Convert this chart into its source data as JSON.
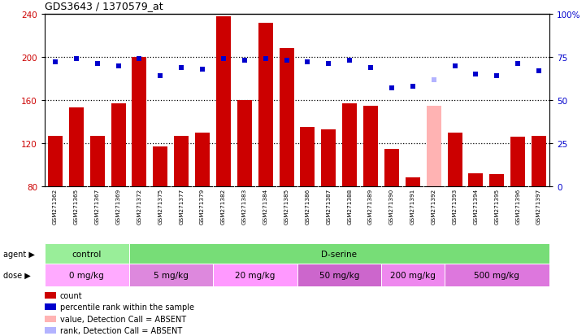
{
  "title": "GDS3643 / 1370579_at",
  "samples": [
    "GSM271362",
    "GSM271365",
    "GSM271367",
    "GSM271369",
    "GSM271372",
    "GSM271375",
    "GSM271377",
    "GSM271379",
    "GSM271382",
    "GSM271383",
    "GSM271384",
    "GSM271385",
    "GSM271386",
    "GSM271387",
    "GSM271388",
    "GSM271389",
    "GSM271390",
    "GSM271391",
    "GSM271392",
    "GSM271393",
    "GSM271394",
    "GSM271395",
    "GSM271396",
    "GSM271397"
  ],
  "count_values": [
    127,
    153,
    127,
    157,
    200,
    117,
    127,
    130,
    238,
    160,
    232,
    208,
    135,
    133,
    157,
    155,
    115,
    88,
    155,
    130,
    92,
    91,
    126,
    127
  ],
  "rank_values": [
    72,
    74,
    71,
    70,
    74,
    64,
    69,
    68,
    74,
    73,
    74,
    73,
    72,
    71,
    73,
    69,
    57,
    58,
    62,
    70,
    65,
    64,
    71,
    67
  ],
  "absent_bar": [
    false,
    false,
    false,
    false,
    false,
    false,
    false,
    false,
    false,
    false,
    false,
    false,
    false,
    false,
    false,
    false,
    false,
    false,
    true,
    false,
    false,
    false,
    false,
    false
  ],
  "absent_rank": [
    false,
    false,
    false,
    false,
    false,
    false,
    false,
    false,
    false,
    false,
    false,
    false,
    false,
    false,
    false,
    false,
    false,
    false,
    true,
    false,
    false,
    false,
    false,
    false
  ],
  "bar_color": "#cc0000",
  "absent_bar_color": "#ffb3b3",
  "rank_color": "#0000cc",
  "absent_rank_color": "#b3b3ff",
  "ylim_left": [
    80,
    240
  ],
  "ylim_right": [
    0,
    100
  ],
  "yticks_left": [
    80,
    120,
    160,
    200,
    240
  ],
  "yticks_right": [
    0,
    25,
    50,
    75,
    100
  ],
  "agents": [
    {
      "label": "control",
      "start": 0,
      "end": 4,
      "color": "#99ee99"
    },
    {
      "label": "D-serine",
      "start": 4,
      "end": 24,
      "color": "#77dd77"
    }
  ],
  "doses": [
    {
      "label": "0 mg/kg",
      "start": 0,
      "end": 4,
      "color": "#ffaaff"
    },
    {
      "label": "5 mg/kg",
      "start": 4,
      "end": 8,
      "color": "#dd88dd"
    },
    {
      "label": "20 mg/kg",
      "start": 8,
      "end": 12,
      "color": "#ff99ff"
    },
    {
      "label": "50 mg/kg",
      "start": 12,
      "end": 16,
      "color": "#cc66cc"
    },
    {
      "label": "200 mg/kg",
      "start": 16,
      "end": 19,
      "color": "#ee88ee"
    },
    {
      "label": "500 mg/kg",
      "start": 19,
      "end": 24,
      "color": "#dd77dd"
    }
  ],
  "legend_items": [
    {
      "label": "count",
      "color": "#cc0000"
    },
    {
      "label": "percentile rank within the sample",
      "color": "#0000cc"
    },
    {
      "label": "value, Detection Call = ABSENT",
      "color": "#ffb3b3"
    },
    {
      "label": "rank, Detection Call = ABSENT",
      "color": "#b3b3ff"
    }
  ],
  "tick_color_left": "#cc0000",
  "tick_color_right": "#0000cc"
}
